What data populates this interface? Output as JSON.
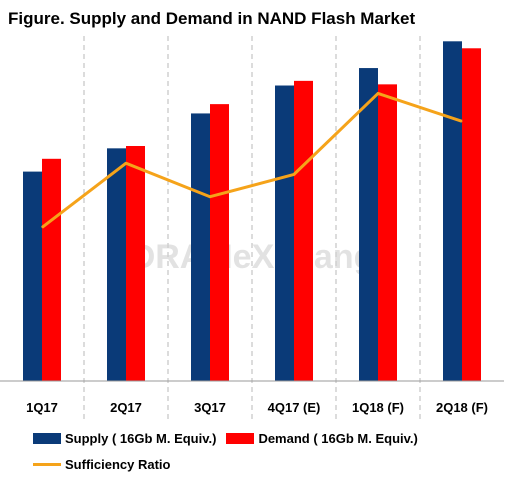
{
  "chart_data": {
    "type": "bar",
    "title": "Figure. Supply and Demand in NAND Flash Market",
    "categories": [
      "1Q17",
      "2Q17",
      "3Q17",
      "4Q17 (E)",
      "1Q18 (F)",
      "2Q18 (F)"
    ],
    "series": [
      {
        "name": "Supply ( 16Gb M. Equiv.)",
        "type": "bar",
        "color": "#0a3a78",
        "values": [
          180,
          200,
          230,
          254,
          269,
          292
        ]
      },
      {
        "name": "Demand ( 16Gb M. Equiv.)",
        "type": "bar",
        "color": "#ff0000",
        "values": [
          191,
          202,
          238,
          258,
          255,
          286
        ]
      },
      {
        "name": "Sufficiency Ratio",
        "type": "line",
        "color": "#f5a31a",
        "values": [
          0.2,
          0.43,
          0.31,
          0.39,
          0.68,
          0.58
        ]
      }
    ],
    "ylim": [
      0,
      300
    ],
    "ratio_ylim": [
      -0.35,
      0.9
    ],
    "grid": "vertical dashed separators between categories",
    "legend_position": "bottom"
  },
  "watermark": "DRAMeXchange"
}
